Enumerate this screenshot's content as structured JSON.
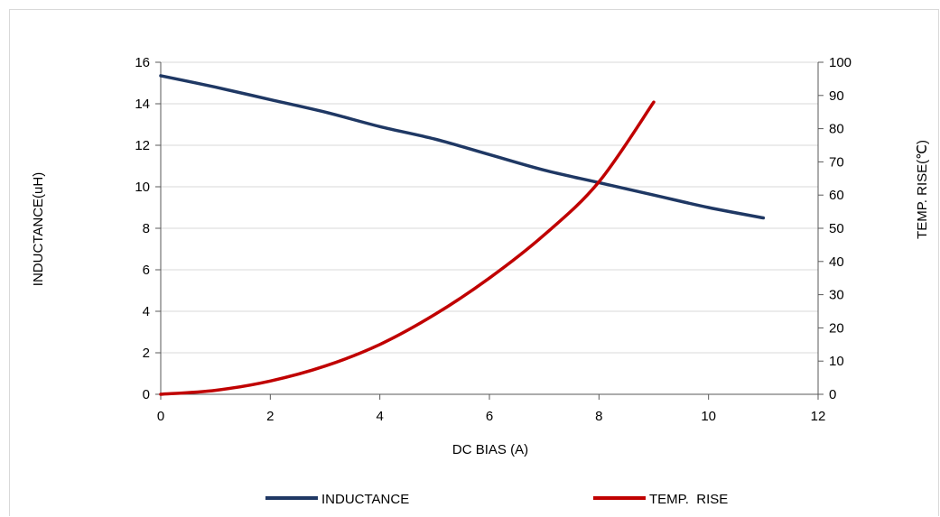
{
  "chart_data": {
    "type": "line",
    "xlabel": "DC  BIAS (A)",
    "ylabel": "INDUCTANCE(uH)",
    "y2label": "TEMP. RISE(℃)",
    "xlim": [
      0,
      12
    ],
    "ylim": [
      0,
      16
    ],
    "y2lim": [
      0,
      100
    ],
    "x_ticks": [
      "0",
      "2",
      "4",
      "6",
      "8",
      "10",
      "12"
    ],
    "y_ticks": [
      "0",
      "2",
      "4",
      "6",
      "8",
      "10",
      "12",
      "14",
      "16"
    ],
    "y2_ticks": [
      "0",
      "10",
      "20",
      "30",
      "40",
      "50",
      "60",
      "70",
      "80",
      "90",
      "100"
    ],
    "grid": "horizontal",
    "legend": "bottom",
    "series": [
      {
        "name": "INDUCTANCE",
        "axis": "left",
        "color": "#1f3864",
        "x": [
          0,
          1,
          2,
          3,
          4,
          5,
          6,
          7,
          8,
          9,
          10,
          11
        ],
        "values": [
          15.35,
          14.8,
          14.2,
          13.6,
          12.9,
          12.3,
          11.55,
          10.8,
          10.2,
          9.6,
          9.0,
          8.5
        ]
      },
      {
        "name": "TEMP.  RISE",
        "axis": "right",
        "color": "#c00000",
        "x": [
          0,
          1,
          2,
          3,
          4,
          5,
          6,
          7,
          8,
          9
        ],
        "values": [
          0,
          1.2,
          4,
          8.5,
          15,
          24,
          35,
          48,
          64,
          88
        ]
      }
    ]
  }
}
